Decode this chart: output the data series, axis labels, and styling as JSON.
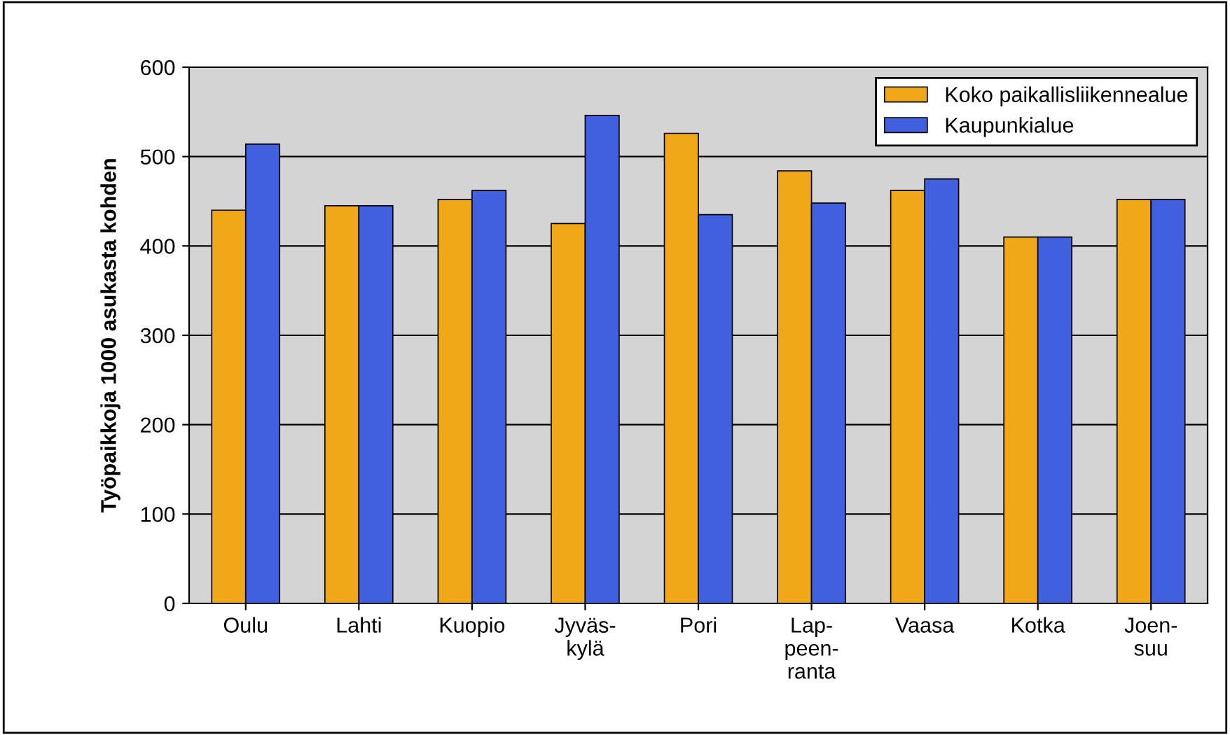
{
  "chart_data": {
    "type": "bar",
    "ylabel": "Työpaikkoja 1000 asukasta kohden",
    "categories": [
      "Oulu",
      "Lahti",
      "Kuopio",
      "Jyväs-\nkylä",
      "Pori",
      "Lap-\npeen-\nranta",
      "Vaasa",
      "Kotka",
      "Joen-\nsuu"
    ],
    "series": [
      {
        "name": "Koko paikallisliikennealue",
        "color": "#f0a818",
        "values": [
          440,
          445,
          452,
          425,
          526,
          484,
          462,
          410,
          452
        ]
      },
      {
        "name": "Kaupunkialue",
        "color": "#4060e0",
        "values": [
          514,
          445,
          462,
          546,
          435,
          448,
          475,
          410,
          452
        ]
      }
    ],
    "ylim": [
      0,
      600
    ],
    "yticks": [
      0,
      100,
      200,
      300,
      400,
      500,
      600
    ],
    "grid": "y",
    "legend": "top right"
  }
}
